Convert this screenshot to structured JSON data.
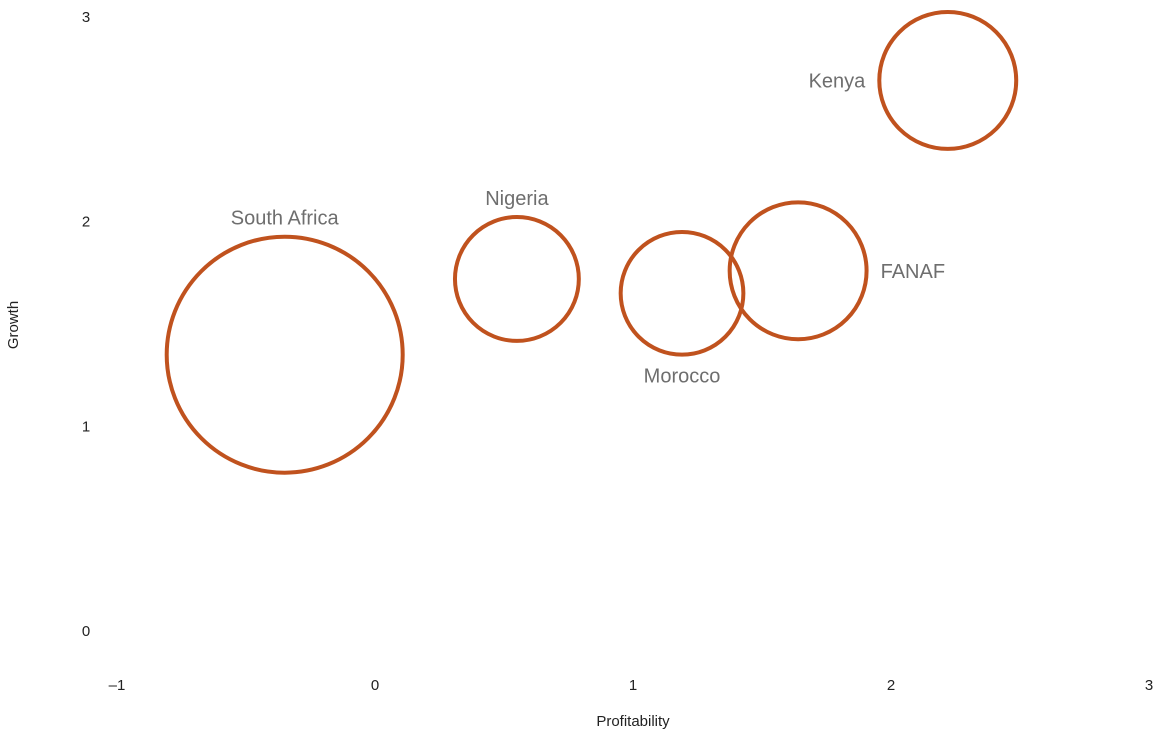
{
  "chart_data": {
    "type": "scatter",
    "subtype": "bubble",
    "title": "",
    "xlabel": "Profitability",
    "ylabel": "Growth",
    "xlim": [
      -1,
      3
    ],
    "ylim": [
      0,
      3
    ],
    "x_ticks": [
      {
        "value": -1,
        "label": "–1"
      },
      {
        "value": 0,
        "label": "0"
      },
      {
        "value": 1,
        "label": "1"
      },
      {
        "value": 2,
        "label": "2"
      },
      {
        "value": 3,
        "label": "3"
      }
    ],
    "y_ticks": [
      {
        "value": 0,
        "label": "0"
      },
      {
        "value": 1,
        "label": "1"
      },
      {
        "value": 2,
        "label": "2"
      },
      {
        "value": 3,
        "label": "3"
      }
    ],
    "grid": false,
    "legend": "none",
    "bubble_color": "#c0521e",
    "label_color": "#6e6e6e",
    "points": [
      {
        "label": "South Africa",
        "x": -0.35,
        "y": 1.35,
        "size": 1.0,
        "label_position": "above"
      },
      {
        "label": "Nigeria",
        "x": 0.55,
        "y": 1.72,
        "size": 0.27,
        "label_position": "above"
      },
      {
        "label": "Morocco",
        "x": 1.19,
        "y": 1.65,
        "size": 0.265,
        "label_position": "below"
      },
      {
        "label": "FANAF",
        "x": 1.64,
        "y": 1.76,
        "size": 0.33,
        "label_position": "right"
      },
      {
        "label": "Kenya",
        "x": 2.22,
        "y": 2.69,
        "size": 0.33,
        "label_position": "left"
      }
    ]
  }
}
